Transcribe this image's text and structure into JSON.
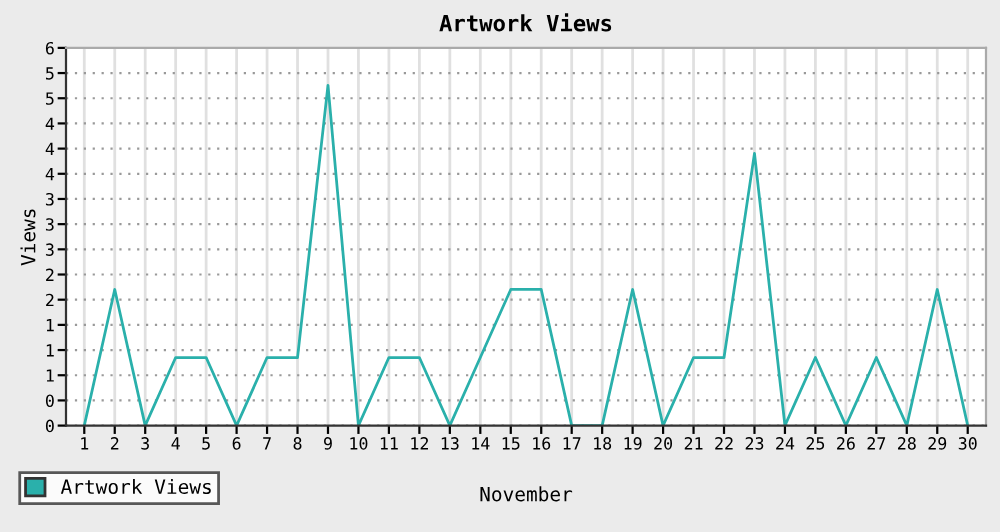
{
  "chart_data": {
    "type": "line",
    "title": "Artwork Views",
    "xlabel": "November",
    "ylabel": "Views",
    "categories": [
      "1",
      "2",
      "3",
      "4",
      "5",
      "6",
      "7",
      "8",
      "9",
      "10",
      "11",
      "12",
      "13",
      "14",
      "15",
      "16",
      "17",
      "18",
      "19",
      "20",
      "21",
      "22",
      "23",
      "24",
      "25",
      "26",
      "27",
      "28",
      "29",
      "30"
    ],
    "series": [
      {
        "name": "Artwork Views",
        "color": "#2ab0ab",
        "values": [
          0,
          2,
          0,
          1,
          1,
          0,
          1,
          1,
          5,
          0,
          1,
          1,
          0,
          1,
          2,
          2,
          0,
          0,
          2,
          0,
          1,
          1,
          4,
          0,
          1,
          0,
          1,
          0,
          2,
          0
        ]
      }
    ],
    "ylim": [
      0,
      5.55
    ],
    "yticks": [
      {
        "value": 0,
        "label": "0"
      },
      {
        "value": 0.37,
        "label": "0"
      },
      {
        "value": 0.74,
        "label": "1"
      },
      {
        "value": 1.11,
        "label": "1"
      },
      {
        "value": 1.48,
        "label": "1"
      },
      {
        "value": 1.85,
        "label": "2"
      },
      {
        "value": 2.22,
        "label": "2"
      },
      {
        "value": 2.59,
        "label": "3"
      },
      {
        "value": 2.96,
        "label": "3"
      },
      {
        "value": 3.33,
        "label": "3"
      },
      {
        "value": 3.7,
        "label": "4"
      },
      {
        "value": 4.07,
        "label": "4"
      },
      {
        "value": 4.44,
        "label": "4"
      },
      {
        "value": 4.81,
        "label": "5"
      },
      {
        "value": 5.18,
        "label": "5"
      },
      {
        "value": 5.55,
        "label": "6"
      }
    ],
    "grid": true,
    "legend": "bottom left",
    "marker": "none",
    "line_style": "solid"
  }
}
